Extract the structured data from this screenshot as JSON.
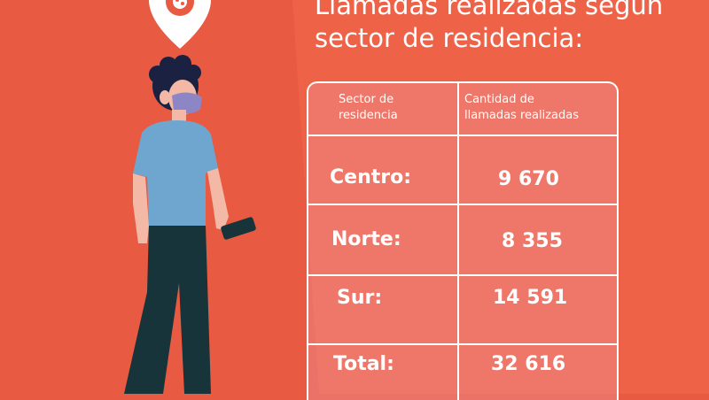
{
  "title": {
    "line1": "Llamadas realizadas según",
    "line2": "sector de residencia:"
  },
  "table": {
    "header_sector": [
      "Sector de",
      "residencia"
    ],
    "header_count": [
      "Cantidad de",
      "llamadas realizadas"
    ],
    "rows": [
      {
        "label": "Centro:",
        "value": "9 670"
      },
      {
        "label": "Norte:",
        "value": "8 355"
      },
      {
        "label": "Sur:",
        "value": "14 591"
      },
      {
        "label": "Total:",
        "value": "32 616"
      }
    ]
  },
  "colors": {
    "background": "#e85a42",
    "table_fill": "#f0a0aa",
    "shirt": "#6fa6cf",
    "pants": "#17343b",
    "skin": "#f4b9a6",
    "hair": "#1b2140",
    "mask": "#8c86c7"
  },
  "icons": {
    "pin": "map-pin-icon",
    "virus": "virus-icon",
    "phone": "phone-icon"
  }
}
